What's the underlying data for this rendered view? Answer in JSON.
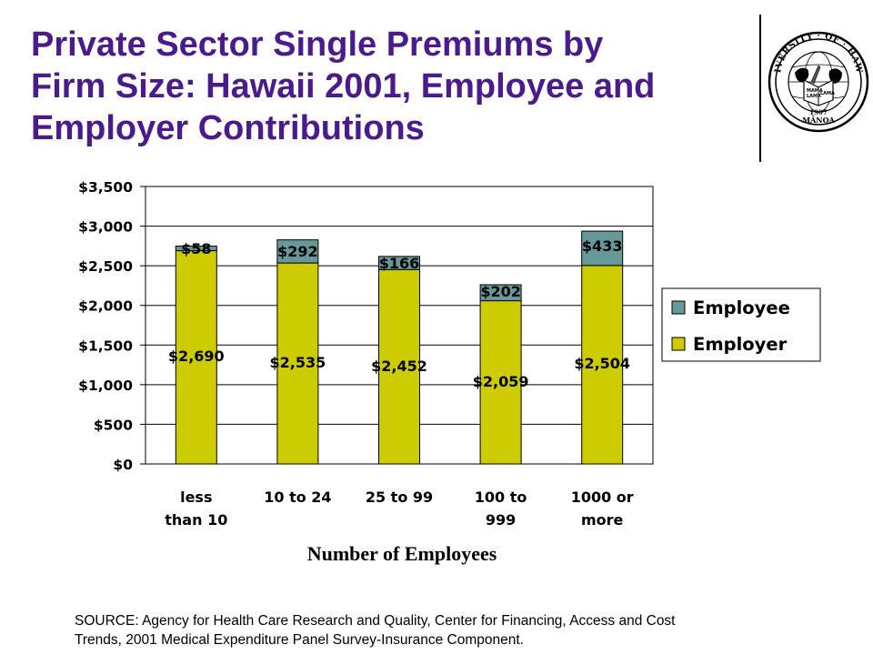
{
  "header": {
    "title_lines": [
      "Private Sector Single Premiums by",
      "Firm Size:  Hawaii 2001, Employee and",
      "Employer Contributions"
    ]
  },
  "logo": {
    "text_top": "UNIVERSITY · OF · HAWAII",
    "text_bottom": "MĀNOA",
    "year": "1907",
    "book_words": [
      "MAMA",
      "LAMA",
      "LAMA"
    ]
  },
  "chart_data": {
    "type": "bar",
    "stacked": true,
    "categories": [
      [
        "less",
        "than 10"
      ],
      [
        "10 to 24"
      ],
      [
        "25 to 99"
      ],
      [
        "100 to",
        "999"
      ],
      [
        "1000 or",
        "more"
      ]
    ],
    "series": [
      {
        "name": "Employer",
        "color": "#cccc00",
        "values": [
          2690,
          2535,
          2452,
          2059,
          2504
        ],
        "labels": [
          "$2,690",
          "$2,535",
          "$2,452",
          "$2,059",
          "$2,504"
        ]
      },
      {
        "name": "Employee",
        "color": "#669999",
        "values": [
          58,
          292,
          166,
          202,
          433
        ],
        "labels": [
          "$58",
          "$292",
          "$166",
          "$202",
          "$433"
        ]
      }
    ],
    "xlabel": "Number of Employees",
    "ylabel": "",
    "ylim": [
      0,
      3500
    ],
    "yticks": [
      0,
      500,
      1000,
      1500,
      2000,
      2500,
      3000,
      3500
    ],
    "ytick_labels": [
      "$0",
      "$500",
      "$1,000",
      "$1,500",
      "$2,000",
      "$2,500",
      "$3,000",
      "$3,500"
    ],
    "grid": true,
    "legend_position": "right",
    "legend_order": [
      "Employee",
      "Employer"
    ]
  },
  "footer": {
    "source_lines": [
      "SOURCE: Agency for Health Care Research and Quality, Center for Financing, Access and Cost",
      "Trends, 2001 Medical Expenditure Panel Survey-Insurance Component."
    ]
  }
}
